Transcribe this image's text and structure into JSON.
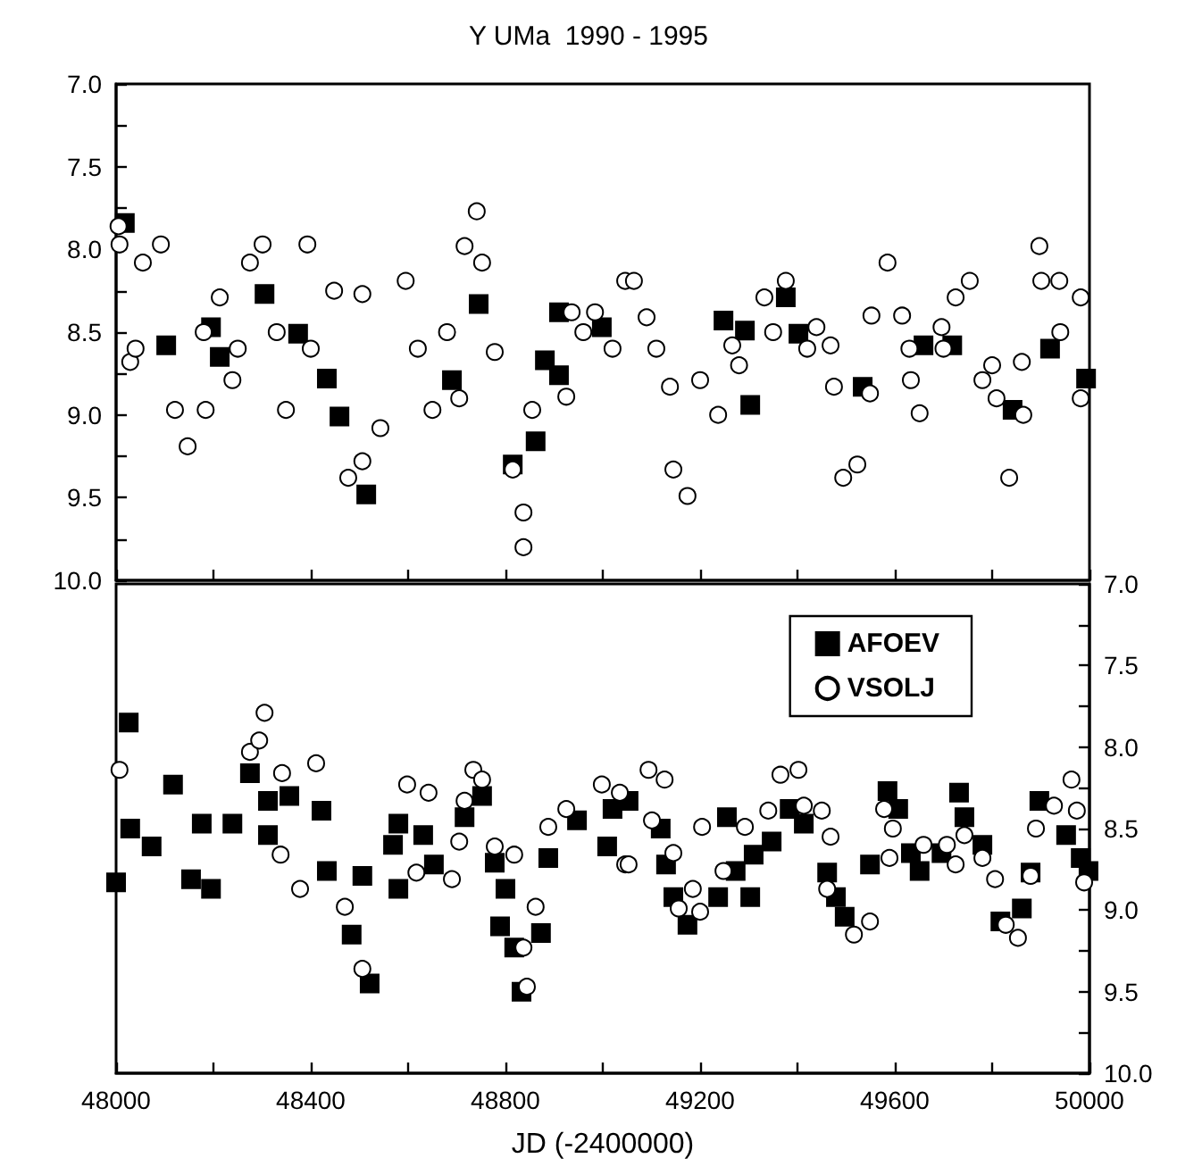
{
  "chart_data": [
    {
      "type": "scatter",
      "title": "Y UMa  1990 - 1995",
      "xlim": [
        48000,
        50000
      ],
      "xticks": [
        48000,
        {
          "value": 48200,
          "label": null
        },
        48400,
        {
          "value": 48600,
          "label": null
        },
        48800,
        {
          "value": 49000,
          "label": null
        },
        49200,
        {
          "value": 49400,
          "label": null
        },
        49600,
        {
          "value": 49800,
          "label": null
        },
        50000
      ],
      "ylim": [
        10.0,
        7.0
      ],
      "yticks": [
        {
          "value": 7.0,
          "label": "7.0"
        },
        {
          "value": 7.25,
          "label": null
        },
        {
          "value": 7.5,
          "label": "7.5"
        },
        {
          "value": 7.75,
          "label": null
        },
        {
          "value": 8.0,
          "label": "8.0"
        },
        {
          "value": 8.25,
          "label": null
        },
        {
          "value": 8.5,
          "label": "8.5"
        },
        {
          "value": 8.75,
          "label": null
        },
        {
          "value": 9.0,
          "label": "9.0"
        },
        {
          "value": 9.25,
          "label": null
        },
        {
          "value": 9.5,
          "label": "9.5"
        },
        {
          "value": 9.75,
          "label": null
        },
        {
          "value": 10.0,
          "label": "10.0"
        }
      ],
      "tick_labels": "y",
      "legend": false,
      "series": [
        {
          "color": "#000000",
          "marker": "square",
          "x": [
            48018,
            48103,
            48195,
            48213,
            48305,
            48374,
            48433,
            48459,
            48514,
            48690,
            48745,
            48815,
            48862,
            48881,
            48910,
            48910,
            48998,
            49248,
            49292,
            49303,
            49376,
            49402,
            49534,
            49659,
            49718,
            49842,
            49919,
            49993
          ],
          "values": [
            7.84,
            8.58,
            8.47,
            8.65,
            8.27,
            8.51,
            8.78,
            9.01,
            9.48,
            8.79,
            8.33,
            9.3,
            9.16,
            8.67,
            8.76,
            8.38,
            8.47,
            8.43,
            8.49,
            8.94,
            8.29,
            8.51,
            8.83,
            8.58,
            8.58,
            8.97,
            8.6,
            8.78
          ]
        },
        {
          "color": "#ffffff",
          "marker": "circle",
          "x": [
            48005,
            48007,
            48029,
            48040,
            48055,
            48092,
            48121,
            48147,
            48180,
            48184,
            48213,
            48239,
            48250,
            48275,
            48301,
            48330,
            48349,
            48393,
            48400,
            48448,
            48477,
            48506,
            48506,
            48543,
            48595,
            48620,
            48650,
            48680,
            48705,
            48716,
            48741,
            48752,
            48778,
            48815,
            48837,
            48837,
            48855,
            48925,
            48936,
            48960,
            48984,
            49020,
            49046,
            49064,
            49090,
            49110,
            49138,
            49145,
            49174,
            49200,
            49237,
            49266,
            49280,
            49332,
            49350,
            49376,
            49420,
            49439,
            49468,
            49475,
            49494,
            49523,
            49549,
            49552,
            49585,
            49615,
            49630,
            49633,
            49651,
            49696,
            49700,
            49725,
            49754,
            49780,
            49800,
            49809,
            49835,
            49861,
            49864,
            49897,
            49901,
            49938,
            49940,
            49982,
            49982
          ],
          "values": [
            7.86,
            7.97,
            8.68,
            8.6,
            8.08,
            7.97,
            8.97,
            9.19,
            8.5,
            8.97,
            8.29,
            8.79,
            8.6,
            8.08,
            7.97,
            8.5,
            8.97,
            7.97,
            8.6,
            8.25,
            9.38,
            8.27,
            9.28,
            9.08,
            8.19,
            8.6,
            8.97,
            8.5,
            8.9,
            7.98,
            7.77,
            8.08,
            8.62,
            9.33,
            9.8,
            9.59,
            8.97,
            8.89,
            8.38,
            8.5,
            8.38,
            8.6,
            8.19,
            8.19,
            8.41,
            8.6,
            8.83,
            9.33,
            9.49,
            8.79,
            9.0,
            8.58,
            8.7,
            8.29,
            8.5,
            8.19,
            8.6,
            8.47,
            8.58,
            8.83,
            9.38,
            9.3,
            8.87,
            8.4,
            8.08,
            8.4,
            8.6,
            8.79,
            8.99,
            8.47,
            8.6,
            8.29,
            8.19,
            8.79,
            8.7,
            8.9,
            9.38,
            8.68,
            9.0,
            7.98,
            8.19,
            8.19,
            8.5,
            8.29,
            8.9
          ]
        }
      ]
    },
    {
      "type": "scatter",
      "xlabel": "JD (-2400000)",
      "xlim": [
        48000,
        50000
      ],
      "xticks": [
        48000,
        {
          "value": 48200,
          "label": null
        },
        48400,
        {
          "value": 48600,
          "label": null
        },
        48800,
        {
          "value": 49000,
          "label": null
        },
        49200,
        {
          "value": 49400,
          "label": null
        },
        49600,
        {
          "value": 49800,
          "label": null
        },
        50000
      ],
      "y2lim": [
        10.0,
        7.0
      ],
      "y2ticks": [
        {
          "value": 7.0,
          "label": "7.0"
        },
        {
          "value": 7.25,
          "label": null
        },
        {
          "value": 7.5,
          "label": "7.5"
        },
        {
          "value": 7.75,
          "label": null
        },
        {
          "value": 8.0,
          "label": "8.0"
        },
        {
          "value": 8.25,
          "label": null
        },
        {
          "value": 8.5,
          "label": "8.5"
        },
        {
          "value": 8.75,
          "label": null
        },
        {
          "value": 9.0,
          "label": "9.0"
        },
        {
          "value": 9.25,
          "label": null
        },
        {
          "value": 9.5,
          "label": "9.5"
        },
        {
          "value": 9.75,
          "label": null
        },
        {
          "value": 10.0,
          "label": "10.0"
        }
      ],
      "legend": "top right",
      "series": [
        {
          "name": "AFOEV",
          "color": "#000000",
          "marker": "square",
          "axis": "y2",
          "x": [
            48000,
            48026,
            48029,
            48073,
            48117,
            48154,
            48176,
            48195,
            48239,
            48275,
            48312,
            48312,
            48356,
            48422,
            48433,
            48484,
            48506,
            48521,
            48569,
            48580,
            48580,
            48631,
            48653,
            48716,
            48752,
            48778,
            48789,
            48800,
            48818,
            48833,
            48873,
            48888,
            48947,
            49009,
            49020,
            49053,
            49119,
            49130,
            49145,
            49174,
            49237,
            49255,
            49273,
            49303,
            49310,
            49347,
            49384,
            49413,
            49461,
            49479,
            49497,
            49549,
            49585,
            49607,
            49633,
            49651,
            49696,
            49732,
            49743,
            49780,
            49817,
            49861,
            49879,
            49897,
            49952,
            49982,
            49998
          ],
          "values": [
            8.83,
            7.85,
            8.5,
            8.61,
            8.23,
            8.81,
            8.47,
            8.87,
            8.47,
            8.16,
            8.33,
            8.54,
            8.3,
            8.39,
            8.76,
            9.15,
            8.79,
            9.45,
            8.6,
            8.87,
            8.47,
            8.54,
            8.72,
            8.43,
            8.3,
            8.71,
            9.1,
            8.87,
            9.23,
            9.5,
            9.14,
            8.68,
            8.45,
            8.61,
            8.38,
            8.33,
            8.5,
            8.72,
            8.92,
            9.09,
            8.92,
            8.43,
            8.76,
            8.92,
            8.66,
            8.58,
            8.38,
            8.47,
            8.77,
            8.92,
            9.04,
            8.72,
            8.27,
            8.38,
            8.65,
            8.76,
            8.65,
            8.28,
            8.43,
            8.6,
            9.07,
            8.99,
            8.77,
            8.33,
            8.54,
            8.68,
            8.76
          ]
        },
        {
          "name": "VSOLJ",
          "color": "#ffffff",
          "marker": "circle",
          "axis": "y2",
          "x": [
            48007,
            48275,
            48294,
            48305,
            48338,
            48341,
            48378,
            48411,
            48470,
            48506,
            48598,
            48617,
            48642,
            48690,
            48705,
            48716,
            48734,
            48752,
            48778,
            48818,
            48837,
            48844,
            48862,
            48888,
            48925,
            48998,
            49035,
            49046,
            49053,
            49094,
            49101,
            49127,
            49145,
            49156,
            49185,
            49200,
            49204,
            49248,
            49292,
            49340,
            49365,
            49402,
            49413,
            49450,
            49461,
            49468,
            49516,
            49549,
            49578,
            49589,
            49596,
            49659,
            49707,
            49725,
            49743,
            49780,
            49806,
            49828,
            49853,
            49879,
            49890,
            49927,
            49963,
            49974,
            49989
          ],
          "values": [
            8.14,
            8.03,
            7.96,
            7.79,
            8.66,
            8.16,
            8.87,
            8.1,
            8.98,
            9.36,
            8.23,
            8.77,
            8.28,
            8.81,
            8.58,
            8.33,
            8.14,
            8.2,
            8.61,
            8.66,
            9.23,
            9.47,
            8.98,
            8.49,
            8.38,
            8.23,
            8.28,
            8.72,
            8.72,
            8.14,
            8.45,
            8.2,
            8.65,
            8.99,
            8.87,
            9.01,
            8.49,
            8.76,
            8.49,
            8.39,
            8.17,
            8.14,
            8.36,
            8.39,
            8.87,
            8.55,
            9.15,
            9.07,
            8.38,
            8.68,
            8.5,
            8.6,
            8.6,
            8.72,
            8.54,
            8.68,
            8.81,
            9.09,
            9.17,
            8.79,
            8.5,
            8.36,
            8.2,
            8.39,
            8.83
          ]
        }
      ]
    }
  ]
}
